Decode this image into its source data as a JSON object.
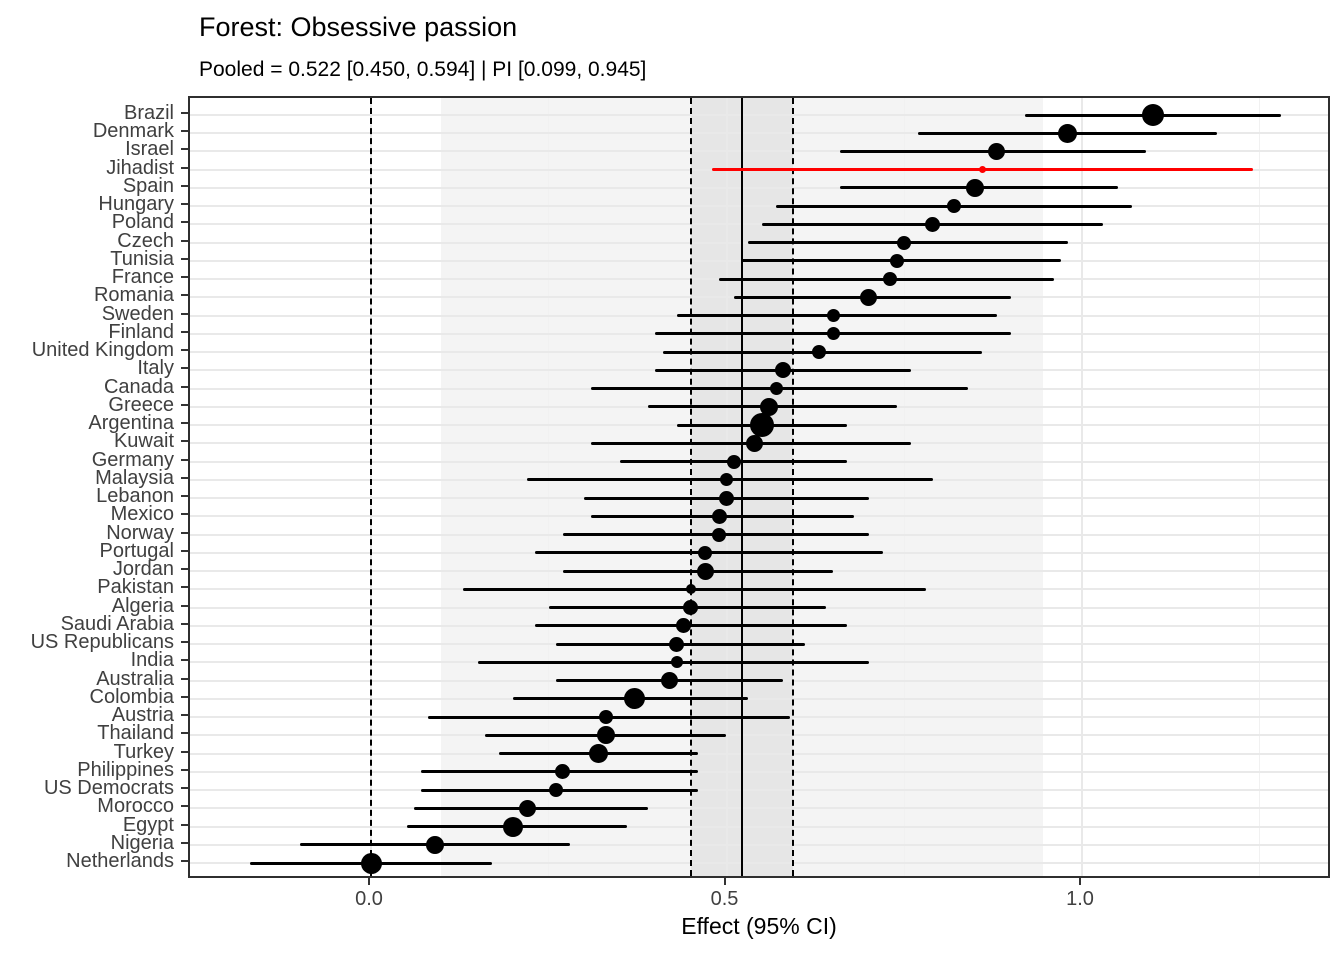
{
  "chart_data": {
    "type": "forest",
    "title": "Forest: Obsessive passion",
    "subtitle": "Pooled = 0.522 [0.450, 0.594] | PI [0.099, 0.945]",
    "xlabel": "Effect (95% CI)",
    "x_tick_labels": [
      "0.0",
      "0.5",
      "1.0"
    ],
    "x_tick_values": [
      0.0,
      0.5,
      1.0
    ],
    "x_minor_tick_values": [
      0.25,
      0.75,
      1.25
    ],
    "xlim": [
      -0.255,
      1.352
    ],
    "grid": true,
    "reference_value": 0.0,
    "pooled": {
      "est": 0.522,
      "lo": 0.45,
      "hi": 0.594
    },
    "prediction_interval": {
      "lo": 0.099,
      "hi": 0.945
    },
    "colors": {
      "point": "#000000",
      "highlight": "#ff0000",
      "ci_band": "#e6e6e6",
      "pi_band": "#f4f4f4",
      "gridline": "#e9e9e9",
      "axis_text": "#404040"
    },
    "studies": [
      {
        "label": "Brazil",
        "est": 1.1,
        "lo": 0.92,
        "hi": 1.28,
        "size": 22
      },
      {
        "label": "Denmark",
        "est": 0.98,
        "lo": 0.77,
        "hi": 1.19,
        "size": 19
      },
      {
        "label": "Israel",
        "est": 0.88,
        "lo": 0.66,
        "hi": 1.09,
        "size": 17
      },
      {
        "label": "Jihadist",
        "est": 0.86,
        "lo": 0.48,
        "hi": 1.24,
        "size": 7,
        "color": "#ff0000"
      },
      {
        "label": "Spain",
        "est": 0.85,
        "lo": 0.66,
        "hi": 1.05,
        "size": 18
      },
      {
        "label": "Hungary",
        "est": 0.82,
        "lo": 0.57,
        "hi": 1.07,
        "size": 14
      },
      {
        "label": "Poland",
        "est": 0.79,
        "lo": 0.55,
        "hi": 1.03,
        "size": 15
      },
      {
        "label": "Czech",
        "est": 0.75,
        "lo": 0.53,
        "hi": 0.98,
        "size": 14
      },
      {
        "label": "Tunisia",
        "est": 0.74,
        "lo": 0.52,
        "hi": 0.97,
        "size": 14
      },
      {
        "label": "France",
        "est": 0.73,
        "lo": 0.49,
        "hi": 0.96,
        "size": 14
      },
      {
        "label": "Romania",
        "est": 0.7,
        "lo": 0.51,
        "hi": 0.9,
        "size": 17
      },
      {
        "label": "Sweden",
        "est": 0.65,
        "lo": 0.43,
        "hi": 0.88,
        "size": 13
      },
      {
        "label": "Finland",
        "est": 0.65,
        "lo": 0.4,
        "hi": 0.9,
        "size": 13
      },
      {
        "label": "United Kingdom",
        "est": 0.63,
        "lo": 0.41,
        "hi": 0.86,
        "size": 14
      },
      {
        "label": "Italy",
        "est": 0.58,
        "lo": 0.4,
        "hi": 0.76,
        "size": 16
      },
      {
        "label": "Canada",
        "est": 0.57,
        "lo": 0.31,
        "hi": 0.84,
        "size": 13
      },
      {
        "label": "Greece",
        "est": 0.56,
        "lo": 0.39,
        "hi": 0.74,
        "size": 18
      },
      {
        "label": "Argentina",
        "est": 0.55,
        "lo": 0.43,
        "hi": 0.67,
        "size": 24
      },
      {
        "label": "Kuwait",
        "est": 0.54,
        "lo": 0.31,
        "hi": 0.76,
        "size": 17
      },
      {
        "label": "Germany",
        "est": 0.51,
        "lo": 0.35,
        "hi": 0.67,
        "size": 14
      },
      {
        "label": "Malaysia",
        "est": 0.5,
        "lo": 0.22,
        "hi": 0.79,
        "size": 13
      },
      {
        "label": "Lebanon",
        "est": 0.5,
        "lo": 0.3,
        "hi": 0.7,
        "size": 15
      },
      {
        "label": "Mexico",
        "est": 0.49,
        "lo": 0.31,
        "hi": 0.68,
        "size": 15
      },
      {
        "label": "Norway",
        "est": 0.49,
        "lo": 0.27,
        "hi": 0.7,
        "size": 14
      },
      {
        "label": "Portugal",
        "est": 0.47,
        "lo": 0.23,
        "hi": 0.72,
        "size": 14
      },
      {
        "label": "Jordan",
        "est": 0.47,
        "lo": 0.27,
        "hi": 0.65,
        "size": 17
      },
      {
        "label": "Pakistan",
        "est": 0.45,
        "lo": 0.13,
        "hi": 0.78,
        "size": 10
      },
      {
        "label": "Algeria",
        "est": 0.45,
        "lo": 0.25,
        "hi": 0.64,
        "size": 15
      },
      {
        "label": "Saudi Arabia",
        "est": 0.44,
        "lo": 0.23,
        "hi": 0.67,
        "size": 15
      },
      {
        "label": "US Republicans",
        "est": 0.43,
        "lo": 0.26,
        "hi": 0.61,
        "size": 15
      },
      {
        "label": "India",
        "est": 0.43,
        "lo": 0.15,
        "hi": 0.7,
        "size": 12
      },
      {
        "label": "Australia",
        "est": 0.42,
        "lo": 0.26,
        "hi": 0.58,
        "size": 17
      },
      {
        "label": "Colombia",
        "est": 0.37,
        "lo": 0.2,
        "hi": 0.53,
        "size": 21
      },
      {
        "label": "Austria",
        "est": 0.33,
        "lo": 0.08,
        "hi": 0.59,
        "size": 14
      },
      {
        "label": "Thailand",
        "est": 0.33,
        "lo": 0.16,
        "hi": 0.5,
        "size": 18
      },
      {
        "label": "Turkey",
        "est": 0.32,
        "lo": 0.18,
        "hi": 0.46,
        "size": 19
      },
      {
        "label": "Philippines",
        "est": 0.27,
        "lo": 0.07,
        "hi": 0.46,
        "size": 15
      },
      {
        "label": "US Democrats",
        "est": 0.26,
        "lo": 0.07,
        "hi": 0.46,
        "size": 14
      },
      {
        "label": "Morocco",
        "est": 0.22,
        "lo": 0.06,
        "hi": 0.39,
        "size": 17
      },
      {
        "label": "Egypt",
        "est": 0.2,
        "lo": 0.05,
        "hi": 0.36,
        "size": 20
      },
      {
        "label": "Nigeria",
        "est": 0.09,
        "lo": -0.1,
        "hi": 0.28,
        "size": 18
      },
      {
        "label": "Netherlands",
        "est": 0.0,
        "lo": -0.17,
        "hi": 0.17,
        "size": 21
      }
    ]
  }
}
